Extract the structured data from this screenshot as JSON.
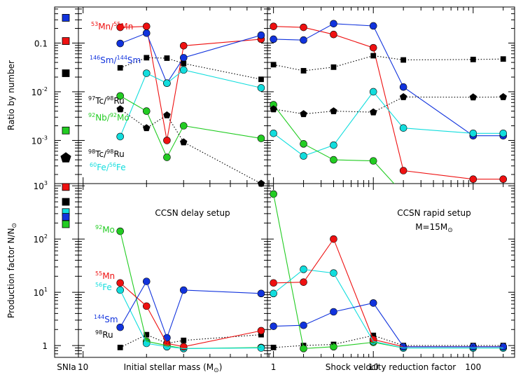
{
  "chart_data": {
    "type": "line",
    "colors": {
      "mn": "#ee1111",
      "sm": "#1133dd",
      "fe": "#11dddd",
      "nb": "#22cc22",
      "tc97": "#000000",
      "tc98": "#000000"
    },
    "sn_ia_label": "SNIa",
    "left_xlabel": "Initial stellar mass (M",
    "left_xlabel_sub": "⊙",
    "left_xlabel_end": ")",
    "right_xlabel": "Shock velocity reduction factor",
    "top_ylabel": "Ratio by number",
    "bottom_ylabel": "Production factor N/N",
    "bottom_ylabel_sub": "⊙",
    "left_x_ticks": [
      {
        "v": 10,
        "label": "10"
      }
    ],
    "right_x_ticks": [
      {
        "v": 1,
        "label": "1"
      },
      {
        "v": 10,
        "label": "10"
      },
      {
        "v": 100,
        "label": "100"
      }
    ],
    "top_y_ticks": [
      {
        "exp": -3,
        "label": "10",
        "sup": "-3"
      },
      {
        "exp": -2,
        "label": "10",
        "sup": "-2"
      },
      {
        "exp": -1,
        "label": "0.1",
        "sup": ""
      }
    ],
    "bottom_y_ticks": [
      {
        "exp": 0,
        "label": "1",
        "sup": ""
      },
      {
        "exp": 1,
        "label": "10",
        "sup": "1"
      },
      {
        "exp": 2,
        "label": "10",
        "sup": "2"
      },
      {
        "exp": 3,
        "label": "10",
        "sup": "3"
      }
    ],
    "panel_titles": {
      "delay": "CCSN delay setup",
      "rapid": "CCSN rapid setup",
      "rapid_mass": "M=15M",
      "rapid_mass_sub": "⊙"
    },
    "top_labels": [
      {
        "key": "mn",
        "pre1": "53",
        "t1": "Mn/",
        "pre2": "55",
        "t2": "Mn"
      },
      {
        "key": "sm",
        "pre1": "146",
        "t1": "Sm/",
        "pre2": "144",
        "t2": "Sm"
      },
      {
        "key": "tc97",
        "pre1": "97",
        "t1": "Tc/",
        "pre2": "98",
        "t2": "Ru"
      },
      {
        "key": "nb",
        "pre1": "92",
        "t1": "Nb/",
        "pre2": "92",
        "t2": "Mo"
      },
      {
        "key": "tc98",
        "pre1": "98",
        "t1": "Tc/",
        "pre2": "98",
        "t2": "Ru"
      },
      {
        "key": "fe",
        "pre1": "60",
        "t1": "Fe/",
        "pre2": "56",
        "t2": "Fe"
      }
    ],
    "bottom_labels": [
      {
        "key": "nb",
        "pre": "92",
        "t": "Mo"
      },
      {
        "key": "mn",
        "pre": "55",
        "t": "Mn"
      },
      {
        "key": "fe",
        "pre": "56",
        "t": "Fe"
      },
      {
        "key": "sm",
        "pre": "144",
        "t": "Sm"
      },
      {
        "key": "ru",
        "pre": "98",
        "t": "Ru"
      }
    ],
    "mass_x": [
      15,
      20,
      25,
      30,
      70
    ],
    "shock_x": [
      1,
      2,
      4,
      10,
      20,
      100,
      200
    ],
    "top_mass": {
      "mn": [
        0.21,
        0.22,
        0.001,
        0.088,
        0.12
      ],
      "sm": [
        0.098,
        0.16,
        0.015,
        0.05,
        0.145
      ],
      "tc97": [
        0.031,
        0.05,
        0.049,
        0.038,
        0.018
      ],
      "fe": [
        0.0012,
        0.024,
        0.015,
        0.028,
        0.012
      ],
      "nb": [
        0.0082,
        0.004,
        0.00045,
        0.002,
        0.0011
      ],
      "tc98": [
        0.0044,
        0.0018,
        0.0033,
        0.00092,
        0.00013
      ]
    },
    "top_shock": {
      "mn": [
        0.22,
        0.21,
        0.15,
        0.08,
        0.00024,
        0.00016,
        0.00016
      ],
      "sm": [
        0.12,
        0.115,
        0.25,
        0.225,
        0.0125,
        0.00125,
        0.00125
      ],
      "tc97": [
        0.036,
        0.027,
        0.032,
        0.055,
        0.045,
        0.046,
        0.047
      ],
      "fe": [
        0.0014,
        0.00048,
        0.0008,
        0.01,
        0.0018,
        0.0014,
        0.0014
      ],
      "nb": [
        0.0054,
        0.00085,
        0.0004,
        0.00038,
        8e-05,
        null,
        null
      ],
      "tc98": [
        0.0044,
        0.0035,
        0.004,
        0.0038,
        0.0078,
        0.0077,
        0.0078
      ]
    },
    "bottom_mass": {
      "nb": [
        140,
        1.2,
        1.0,
        0.88,
        0.92
      ],
      "mn": [
        15,
        5.5,
        1.1,
        0.95,
        1.9
      ],
      "fe": [
        11,
        1.1,
        0.95,
        0.88,
        0.9
      ],
      "sm": [
        2.2,
        16,
        1.4,
        11,
        9.5
      ],
      "ru": [
        0.92,
        1.6,
        1.1,
        1.25,
        1.6
      ]
    },
    "bottom_shock": {
      "nb": [
        700,
        0.88,
        0.95,
        1.15,
        0.9,
        0.9,
        0.9
      ],
      "mn": [
        15,
        15.5,
        100,
        1.3,
        0.95,
        0.95,
        0.95
      ],
      "fe": [
        9.5,
        27,
        23,
        1.2,
        0.9,
        0.9,
        0.9
      ],
      "sm": [
        2.3,
        2.4,
        4.3,
        6.3,
        0.95,
        0.95,
        0.95
      ],
      "ru": [
        0.92,
        1.0,
        1.05,
        1.55,
        1.0,
        1.0,
        1.0
      ]
    },
    "sn_ia_top": [
      {
        "key": "sm",
        "value": 0.33,
        "marker": "square"
      },
      {
        "key": "mn",
        "value": 0.11,
        "marker": "square"
      },
      {
        "key": "tc97",
        "value": 0.024,
        "marker": "square"
      },
      {
        "key": "nb",
        "value": 0.0016,
        "marker": "square"
      },
      {
        "key": "tc98",
        "value": 0.00044,
        "marker": "pentagon"
      }
    ],
    "sn_ia_bottom": [
      {
        "key": "mn",
        "value": 950,
        "marker": "square"
      },
      {
        "key": "tc97",
        "value": 500,
        "marker": "square"
      },
      {
        "key": "fe",
        "value": 320,
        "marker": "square"
      },
      {
        "key": "sm",
        "value": 260,
        "marker": "square"
      },
      {
        "key": "nb",
        "value": 190,
        "marker": "square"
      }
    ],
    "top_ylim": [
      0.00013,
      0.55
    ],
    "bottom_ylim": [
      0.6,
      1100
    ],
    "left_xlim": [
      9.5,
      75
    ],
    "right_xlim": [
      0.87,
      260
    ]
  }
}
